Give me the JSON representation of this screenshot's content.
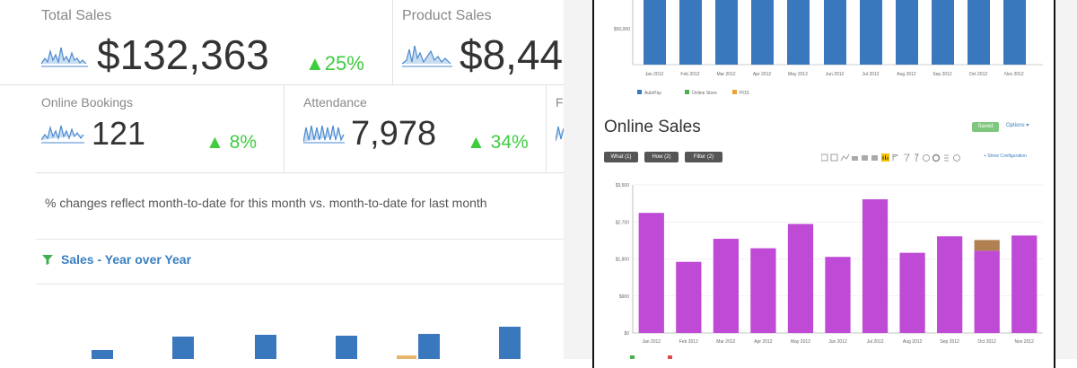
{
  "kpis": [
    {
      "label": "Total Sales",
      "value": "$132,363",
      "change": "25%"
    },
    {
      "label": "Product Sales",
      "value": "$8,44",
      "change": ""
    },
    {
      "label": "Online Bookings",
      "value": "121",
      "change": "8%"
    },
    {
      "label": "Attendance",
      "value": "7,978",
      "change": "34%"
    },
    {
      "label": "F",
      "value": "",
      "change": ""
    }
  ],
  "note": "% changes reflect month-to-date for this month vs. month-to-date for last month",
  "section_title": "Sales - Year over Year",
  "right": {
    "top_chart": {
      "ytick": "$50,000",
      "months": [
        "Jan 2012",
        "Feb 2012",
        "Mar 2012",
        "Apr 2012",
        "May 2012",
        "Jun 2012",
        "Jul 2012",
        "Aug 2012",
        "Sep 2012",
        "Oct 2012",
        "Nov 2012"
      ],
      "legend": [
        "AutoPay",
        "Online Store",
        "POS"
      ]
    },
    "online_sales_title": "Online Sales",
    "saved_label": "Saved",
    "options_label": "Options ▾",
    "filters": [
      "What (1)",
      "How (2)",
      "Filter (2)"
    ],
    "show_configuration": "+ Show Configuration"
  },
  "chart_data": [
    {
      "type": "bar",
      "title": "Online Sales",
      "categories": [
        "Jan 2012",
        "Feb 2012",
        "Mar 2012",
        "Apr 2012",
        "May 2012",
        "Jun 2012",
        "Jul 2012",
        "Aug 2012",
        "Sep 2012",
        "Oct 2012",
        "Nov 2012"
      ],
      "series": [
        {
          "name": "",
          "values": [
            2920,
            1730,
            2290,
            2060,
            2650,
            1850,
            3250,
            1950,
            2350,
            2000,
            2370
          ]
        },
        {
          "name": "",
          "values": [
            0,
            0,
            0,
            0,
            0,
            0,
            0,
            0,
            0,
            260,
            0
          ]
        }
      ],
      "yticks": [
        "$0",
        "$900",
        "$1,800",
        "$2,700",
        "$3,600"
      ],
      "ylim": [
        0,
        3600
      ],
      "colors": [
        "#bf4ad6",
        "#b08050"
      ]
    }
  ]
}
